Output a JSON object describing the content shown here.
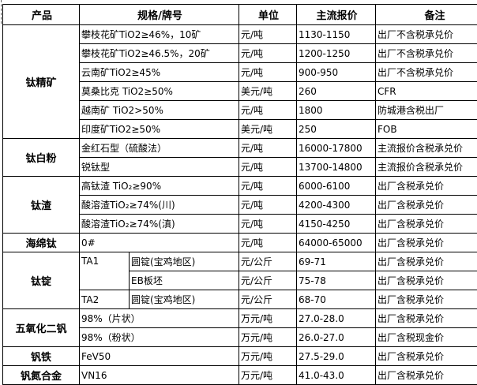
{
  "headers": [
    "产品",
    "规格/牌号",
    "单位",
    "主流报价",
    "备注"
  ],
  "groups": [
    {
      "product": "钛精矿",
      "rows": [
        {
          "spec": "攀枝花矿TiO2≥46%，10矿",
          "unit": "元/吨",
          "price": "1130-1150",
          "note": "出厂不含税承兑价"
        },
        {
          "spec": "攀枝花矿TiO2≥46.5%，20矿",
          "unit": "元/吨",
          "price": "1200-1250",
          "note": "出厂不含税承兑价"
        },
        {
          "spec": "云南矿TiO2≥45%",
          "unit": "元/吨",
          "price": "900-950",
          "note": "出厂不含税承兑价"
        },
        {
          "spec": "莫桑比克 TiO2≥50%",
          "unit": "美元/吨",
          "price": "260",
          "note": "CFR"
        },
        {
          "spec": "越南矿 TiO2>50%",
          "unit": "元/吨",
          "price": "1800",
          "note": "防城港含税出厂"
        },
        {
          "spec": "印度矿TiO2≥50%",
          "unit": "美元/吨",
          "price": "250",
          "note": "FOB"
        }
      ]
    },
    {
      "product": "钛白粉",
      "rows": [
        {
          "spec": "金红石型（硫酸法）",
          "unit": "元/吨",
          "price": "16000-17800",
          "note": "主流报价含税承兑价"
        },
        {
          "spec": "锐钛型",
          "unit": "元/吨",
          "price": "13700-14800",
          "note": "主流报价含税承兑价"
        }
      ]
    },
    {
      "product": "钛渣",
      "rows": [
        {
          "spec": "高钛渣 TiO₂≥90%",
          "unit": "元/吨",
          "price": "6000-6100",
          "note": "出厂含税承兑价"
        },
        {
          "spec": "酸溶渣TiO₂≥74%(川)",
          "unit": "元/吨",
          "price": "4200-4300",
          "note": "出厂含税承兑价"
        },
        {
          "spec": "酸溶渣TiO₂≥74%(滇)",
          "unit": "元/吨",
          "price": "4150-4250",
          "note": "出厂含税承兑价"
        }
      ]
    },
    {
      "product": "海绵钛",
      "rows": [
        {
          "spec": "0#",
          "unit": "元/吨",
          "price": "64000-65000",
          "note": "出厂含税承兑价"
        }
      ]
    },
    {
      "product": "钛锭",
      "rows": [
        {
          "grade": "TA1",
          "grade_span": 2,
          "spec": "圆锭(宝鸡地区)",
          "unit": "元/公斤",
          "price": "69-71",
          "note": "出厂含税承兑价"
        },
        {
          "spec": "EB板坯",
          "unit": "元/公斤",
          "price": "75-78",
          "note": "出厂含税承兑价"
        },
        {
          "grade": "TA2",
          "grade_span": 1,
          "spec": "圆锭(宝鸡地区)",
          "unit": "元/公斤",
          "price": "68-70",
          "note": "出厂含税承兑价"
        }
      ]
    },
    {
      "product": "五氧化二钒",
      "rows": [
        {
          "spec": "98%（片状）",
          "unit": "万元/吨",
          "price": "27.0-28.0",
          "note": "出厂含税承兑价"
        },
        {
          "spec": "98%（粉状）",
          "unit": "万元/吨",
          "price": "26.0-27.0",
          "note": "出厂含税现金价"
        }
      ]
    },
    {
      "product": "钒铁",
      "rows": [
        {
          "spec": "FeV50",
          "unit": "万元/吨",
          "price": "27.5-29.0",
          "note": "出厂含税承兑价"
        }
      ]
    },
    {
      "product": "钒氮合金",
      "rows": [
        {
          "spec": "VN16",
          "unit": "万元/吨",
          "price": "41.0-43.0",
          "note": "出厂含税承兑价"
        }
      ]
    }
  ]
}
